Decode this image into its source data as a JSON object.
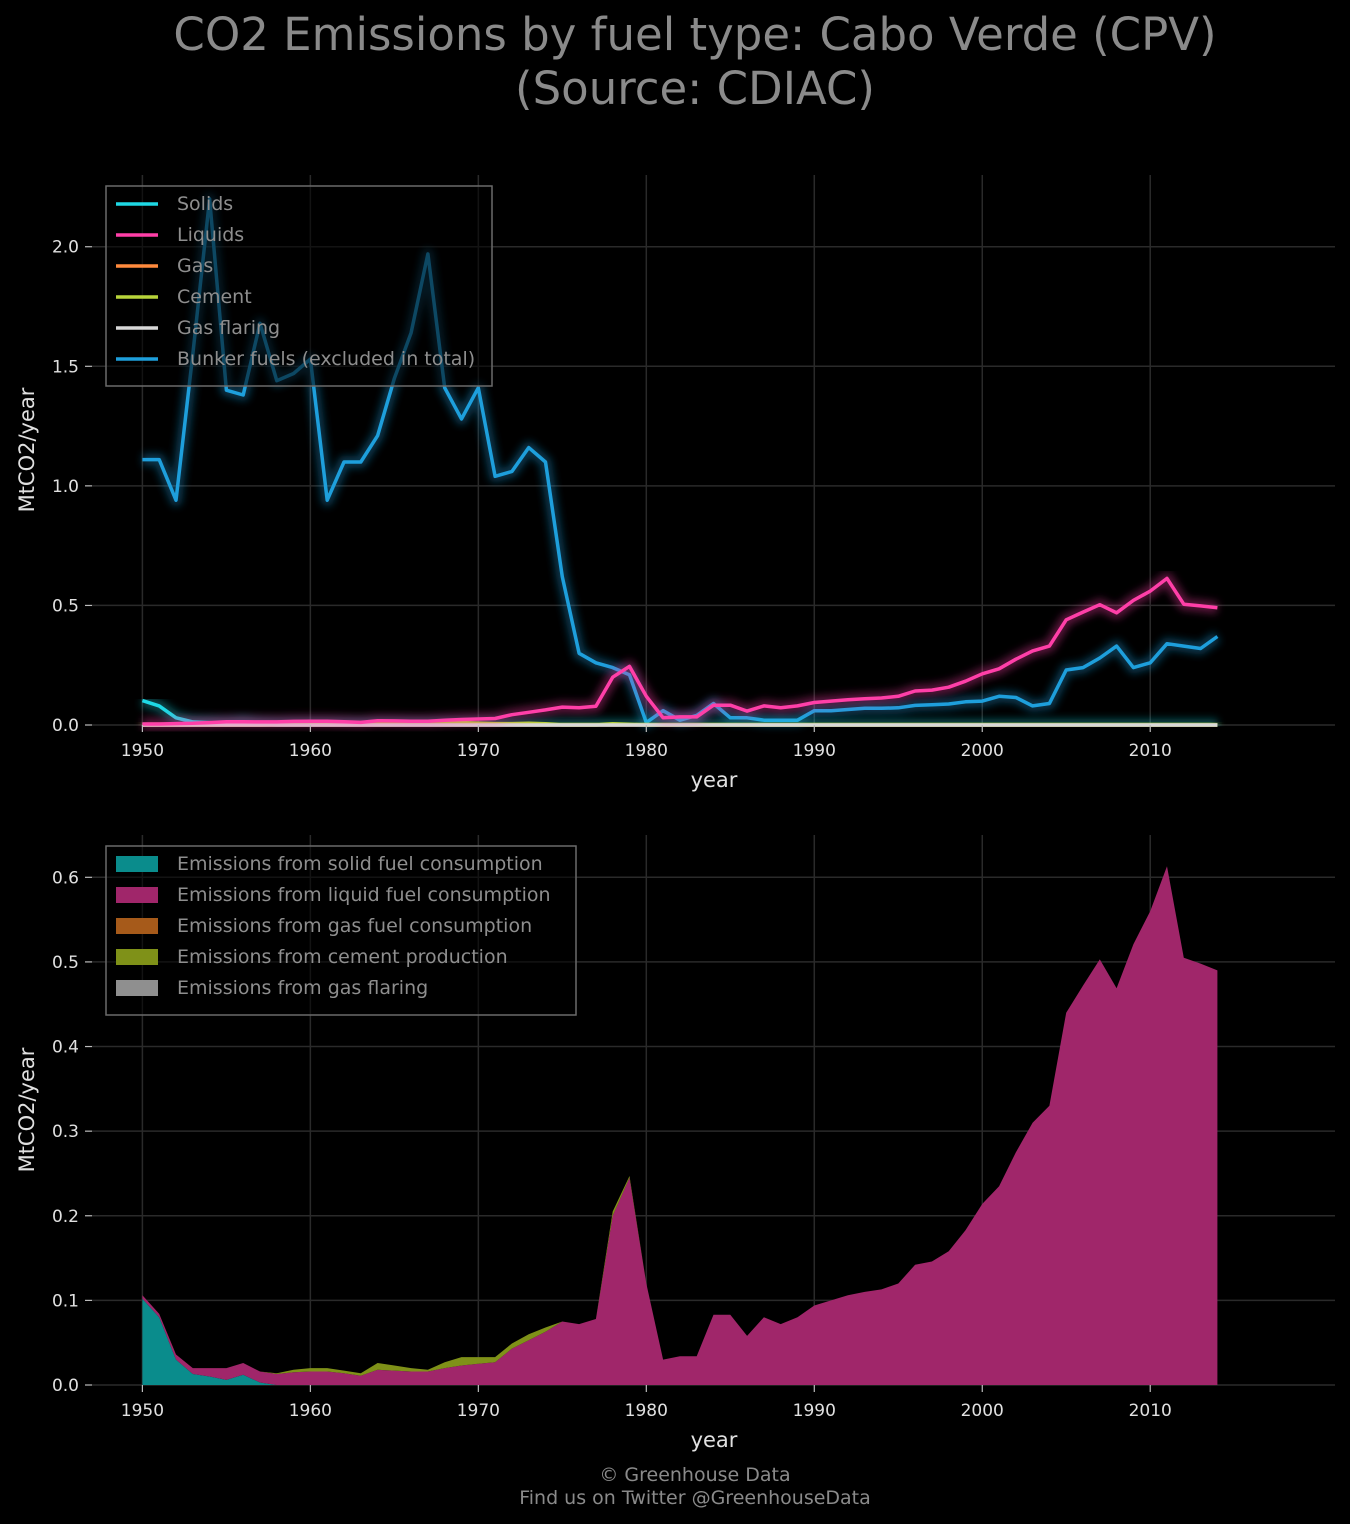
{
  "title_line1": "CO2 Emissions by fuel type: Cabo Verde (CPV)",
  "title_line2": "(Source: CDIAC)",
  "footer_line1": "© Greenhouse Data",
  "footer_line2": "Find us on Twitter @GreenhouseData",
  "chart_data": [
    {
      "type": "line",
      "xlabel": "year",
      "ylabel": "MtCO2/year",
      "xlim": [
        1947,
        2021
      ],
      "ylim": [
        0,
        2.3
      ],
      "xticks": [
        1950,
        1960,
        1970,
        1980,
        1990,
        2000,
        2010
      ],
      "yticks": [
        0.0,
        0.5,
        1.0,
        1.5,
        2.0
      ],
      "ytick_labels": [
        "0.0",
        "0.5",
        "1.0",
        "1.5",
        "2.0"
      ],
      "grid": true,
      "legend_position": "top-left",
      "x": [
        1950,
        1951,
        1952,
        1953,
        1954,
        1955,
        1956,
        1957,
        1958,
        1959,
        1960,
        1961,
        1962,
        1963,
        1964,
        1965,
        1966,
        1967,
        1968,
        1969,
        1970,
        1971,
        1972,
        1973,
        1974,
        1975,
        1976,
        1977,
        1978,
        1979,
        1980,
        1981,
        1982,
        1983,
        1984,
        1985,
        1986,
        1987,
        1988,
        1989,
        1990,
        1991,
        1992,
        1993,
        1994,
        1995,
        1996,
        1997,
        1998,
        1999,
        2000,
        2001,
        2002,
        2003,
        2004,
        2005,
        2006,
        2007,
        2008,
        2009,
        2010,
        2011,
        2012,
        2013,
        2014
      ],
      "series": [
        {
          "name": "Solids",
          "color": "#1ed8e4",
          "values": [
            0.102,
            0.08,
            0.03,
            0.013,
            0.01,
            0.006,
            0.012,
            0.003,
            0,
            0,
            0,
            0,
            0,
            0,
            0,
            0,
            0,
            0,
            0,
            0,
            0,
            0,
            0,
            0,
            0,
            0,
            0,
            0,
            0,
            0,
            0,
            0,
            0,
            0,
            0,
            0,
            0,
            0,
            0,
            0,
            0,
            0,
            0,
            0,
            0,
            0,
            0,
            0,
            0,
            0,
            0,
            0,
            0,
            0,
            0,
            0,
            0,
            0,
            0,
            0,
            0,
            0,
            0,
            0,
            0
          ]
        },
        {
          "name": "Liquids",
          "color": "#ff3fa8",
          "values": [
            0.004,
            0.004,
            0.006,
            0.007,
            0.01,
            0.014,
            0.014,
            0.013,
            0.013,
            0.015,
            0.016,
            0.016,
            0.014,
            0.011,
            0.018,
            0.017,
            0.016,
            0.016,
            0.02,
            0.023,
            0.025,
            0.027,
            0.043,
            0.053,
            0.063,
            0.075,
            0.072,
            0.078,
            0.2,
            0.245,
            0.12,
            0.03,
            0.034,
            0.034,
            0.083,
            0.083,
            0.058,
            0.08,
            0.072,
            0.08,
            0.094,
            0.1,
            0.106,
            0.11,
            0.113,
            0.12,
            0.142,
            0.146,
            0.158,
            0.183,
            0.214,
            0.235,
            0.275,
            0.31,
            0.33,
            0.44,
            0.472,
            0.503,
            0.469,
            0.521,
            0.56,
            0.613,
            0.505,
            0.498,
            0.49
          ]
        },
        {
          "name": "Gas",
          "color": "#ff8a3d",
          "values": [
            0,
            0,
            0,
            0,
            0,
            0,
            0,
            0,
            0,
            0,
            0,
            0,
            0,
            0,
            0,
            0,
            0,
            0,
            0,
            0,
            0,
            0,
            0,
            0,
            0,
            0,
            0,
            0,
            0,
            0,
            0,
            0,
            0,
            0,
            0,
            0,
            0,
            0,
            0,
            0,
            0,
            0,
            0,
            0,
            0,
            0,
            0,
            0,
            0,
            0,
            0,
            0,
            0,
            0,
            0,
            0,
            0,
            0,
            0,
            0,
            0,
            0,
            0,
            0,
            0
          ]
        },
        {
          "name": "Cement",
          "color": "#b8d43a",
          "values": [
            0,
            0,
            0,
            0,
            0,
            0,
            0,
            0,
            0.001,
            0.003,
            0.004,
            0.004,
            0.003,
            0.003,
            0.008,
            0.006,
            0.004,
            0.002,
            0.007,
            0.01,
            0.008,
            0.006,
            0.006,
            0.007,
            0.005,
            0,
            0,
            0,
            0.005,
            0.002,
            0,
            0,
            0,
            0,
            0,
            0,
            0,
            0,
            0,
            0,
            0,
            0,
            0,
            0,
            0,
            0,
            0,
            0,
            0,
            0,
            0,
            0,
            0,
            0,
            0,
            0,
            0,
            0,
            0,
            0,
            0,
            0,
            0,
            0,
            0
          ]
        },
        {
          "name": "Gas flaring",
          "color": "#d8d8d8",
          "values": [
            0,
            0,
            0,
            0,
            0,
            0,
            0,
            0,
            0,
            0,
            0,
            0,
            0,
            0,
            0,
            0,
            0,
            0,
            0,
            0,
            0,
            0,
            0,
            0,
            0,
            0,
            0,
            0,
            0,
            0,
            0,
            0,
            0,
            0,
            0,
            0,
            0,
            0,
            0,
            0,
            0,
            0,
            0,
            0,
            0,
            0,
            0,
            0,
            0,
            0,
            0,
            0,
            0,
            0,
            0,
            0,
            0,
            0,
            0,
            0,
            0,
            0,
            0,
            0,
            0
          ]
        },
        {
          "name": "Bunker fuels (excluded in total)",
          "color": "#1e9fdc",
          "values": [
            1.11,
            1.11,
            0.94,
            1.55,
            2.2,
            1.4,
            1.38,
            1.68,
            1.44,
            1.47,
            1.53,
            0.94,
            1.1,
            1.1,
            1.21,
            1.45,
            1.64,
            1.97,
            1.41,
            1.28,
            1.41,
            1.04,
            1.06,
            1.16,
            1.1,
            0.62,
            0.3,
            0.26,
            0.24,
            0.21,
            0.01,
            0.06,
            0.02,
            0.04,
            0.09,
            0.03,
            0.03,
            0.02,
            0.02,
            0.02,
            0.06,
            0.06,
            0.065,
            0.07,
            0.07,
            0.072,
            0.082,
            0.085,
            0.088,
            0.097,
            0.1,
            0.12,
            0.115,
            0.08,
            0.09,
            0.23,
            0.24,
            0.28,
            0.33,
            0.24,
            0.26,
            0.34,
            0.33,
            0.32,
            0.37
          ]
        }
      ]
    },
    {
      "type": "area",
      "stacked": true,
      "xlabel": "year",
      "ylabel": "MtCO2/year",
      "xlim": [
        1947,
        2021
      ],
      "ylim": [
        0,
        0.65
      ],
      "xticks": [
        1950,
        1960,
        1970,
        1980,
        1990,
        2000,
        2010
      ],
      "yticks": [
        0.0,
        0.1,
        0.2,
        0.3,
        0.4,
        0.5,
        0.6
      ],
      "ytick_labels": [
        "0.0",
        "0.1",
        "0.2",
        "0.3",
        "0.4",
        "0.5",
        "0.6"
      ],
      "grid": true,
      "legend_position": "top-left",
      "series": [
        {
          "name": "Emissions from solid fuel consumption",
          "color": "#0a8c8c",
          "source_series": "Solids"
        },
        {
          "name": "Emissions from liquid fuel consumption",
          "color": "#a0266a",
          "source_series": "Liquids"
        },
        {
          "name": "Emissions from gas fuel consumption",
          "color": "#a65a1a",
          "source_series": "Gas"
        },
        {
          "name": "Emissions from cement production",
          "color": "#7f9118",
          "source_series": "Cement"
        },
        {
          "name": "Emissions from gas flaring",
          "color": "#8f8f8f",
          "source_series": "Gas flaring"
        }
      ]
    }
  ]
}
